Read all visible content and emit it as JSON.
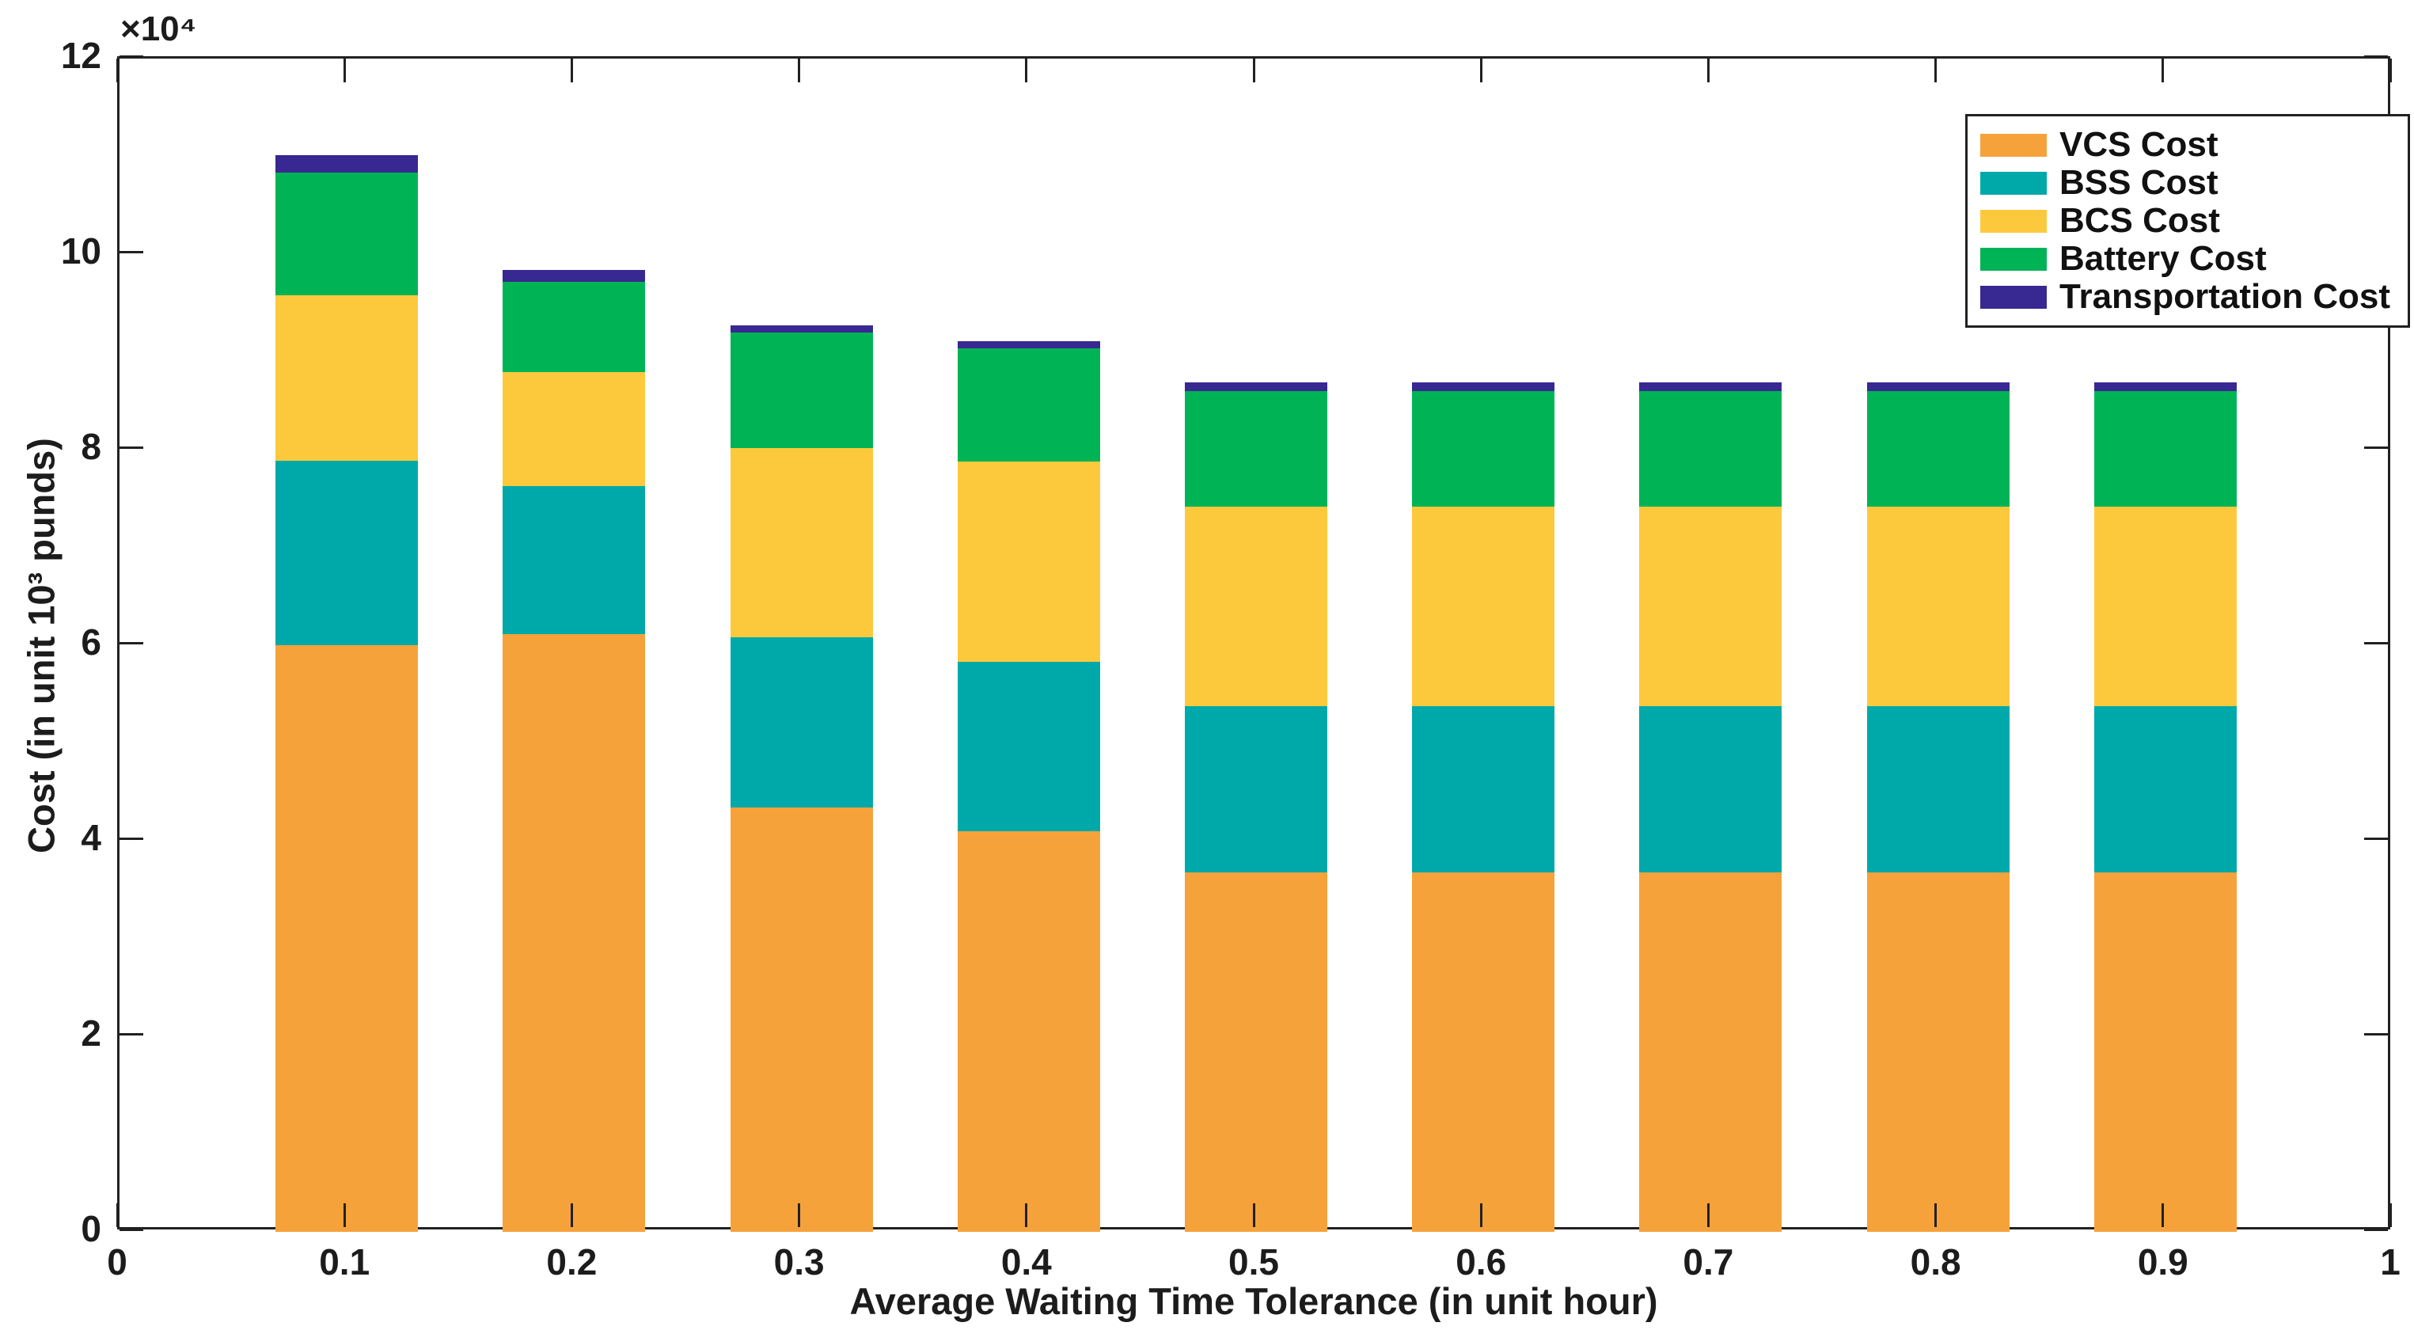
{
  "chart_data": {
    "type": "bar",
    "stacked": true,
    "title": "",
    "xlabel": "Average Waiting Time Tolerance (in unit hour)",
    "ylabel": "Cost (in unit 10³ punds)",
    "y_exponent_label": "×10⁴",
    "value_scale_note": "y values are in units of 10^4 as indicated by the ×10⁴ axis multiplier",
    "xlim": [
      0,
      1
    ],
    "ylim": [
      0,
      12
    ],
    "x_ticks": [
      0,
      0.1,
      0.2,
      0.3,
      0.4,
      0.5,
      0.6,
      0.7,
      0.8,
      0.9,
      1
    ],
    "x_tick_labels": [
      "0",
      "0.1",
      "0.2",
      "0.3",
      "0.4",
      "0.5",
      "0.6",
      "0.7",
      "0.8",
      "0.9",
      "1"
    ],
    "y_ticks": [
      0,
      2,
      4,
      6,
      8,
      10,
      12
    ],
    "y_tick_labels": [
      "0",
      "2",
      "4",
      "6",
      "8",
      "10",
      "12"
    ],
    "grid": false,
    "tick_direction": "in",
    "box": true,
    "legend_position": "top-right",
    "categories": [
      "0.1",
      "0.2",
      "0.3",
      "0.4",
      "0.5",
      "0.6",
      "0.7",
      "0.8",
      "0.9"
    ],
    "x": [
      0.1,
      0.2,
      0.3,
      0.4,
      0.5,
      0.6,
      0.7,
      0.8,
      0.9
    ],
    "series": [
      {
        "name": "VCS Cost",
        "color": "#F6A23B",
        "values": [
          6.0,
          6.11,
          4.34,
          4.1,
          3.68,
          3.68,
          3.68,
          3.68,
          3.68
        ]
      },
      {
        "name": "BSS Cost",
        "color": "#00A9A9",
        "values": [
          1.89,
          1.52,
          1.74,
          1.73,
          1.7,
          1.7,
          1.7,
          1.7,
          1.7
        ]
      },
      {
        "name": "BCS Cost",
        "color": "#FDC93C",
        "values": [
          1.69,
          1.16,
          1.94,
          2.05,
          2.04,
          2.04,
          2.04,
          2.04,
          2.04
        ]
      },
      {
        "name": "Battery Cost",
        "color": "#00B456",
        "values": [
          1.25,
          0.93,
          1.18,
          1.16,
          1.18,
          1.18,
          1.18,
          1.18,
          1.18
        ]
      },
      {
        "name": "Transportation Cost",
        "color": "#382891",
        "values": [
          0.18,
          0.12,
          0.07,
          0.07,
          0.09,
          0.09,
          0.09,
          0.09,
          0.09
        ]
      }
    ],
    "totals": [
      11.01,
      9.84,
      9.27,
      9.11,
      8.69,
      8.69,
      8.69,
      8.69,
      8.69
    ]
  }
}
